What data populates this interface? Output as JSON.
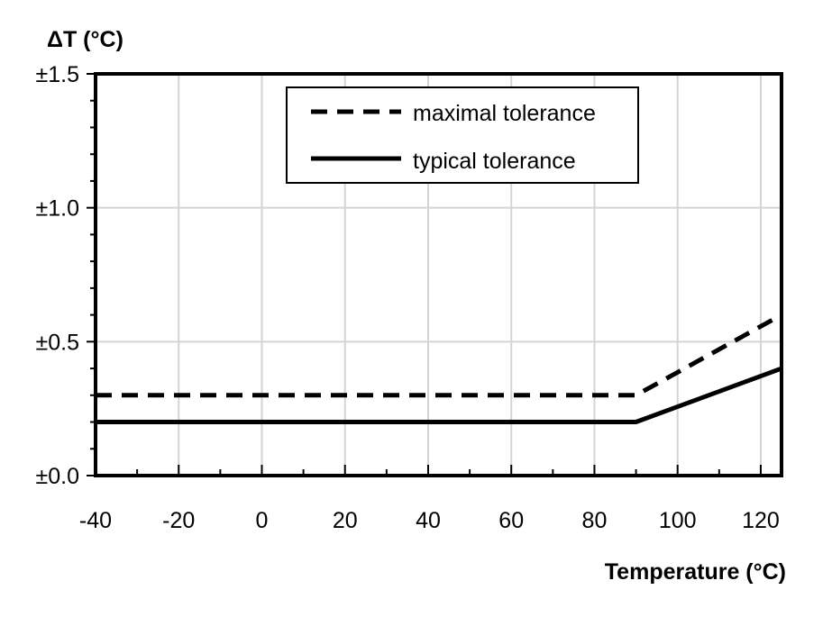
{
  "chart_data": {
    "type": "line",
    "ylabel": "ΔT (°C)",
    "xlabel": "Temperature (°C)",
    "xlim": [
      -40,
      125
    ],
    "ylim": [
      0,
      1.5
    ],
    "x_ticks": [
      -40,
      -20,
      0,
      20,
      40,
      60,
      80,
      100,
      120
    ],
    "x_tick_labels": [
      "-40",
      "-20",
      "0",
      "20",
      "40",
      "60",
      "80",
      "100",
      "120"
    ],
    "y_ticks": [
      0,
      0.5,
      1.0,
      1.5
    ],
    "y_tick_labels": [
      "±0.0",
      "±0.5",
      "±1.0",
      "±1.5"
    ],
    "grid": true,
    "legend_position": "top-right",
    "series": [
      {
        "name": "maximal tolerance",
        "style": "dashed",
        "color": "#000000",
        "x": [
          -40,
          90,
          125
        ],
        "y": [
          0.3,
          0.3,
          0.6
        ]
      },
      {
        "name": "typical tolerance",
        "style": "solid",
        "color": "#000000",
        "x": [
          -40,
          90,
          125
        ],
        "y": [
          0.2,
          0.2,
          0.4
        ]
      }
    ]
  }
}
